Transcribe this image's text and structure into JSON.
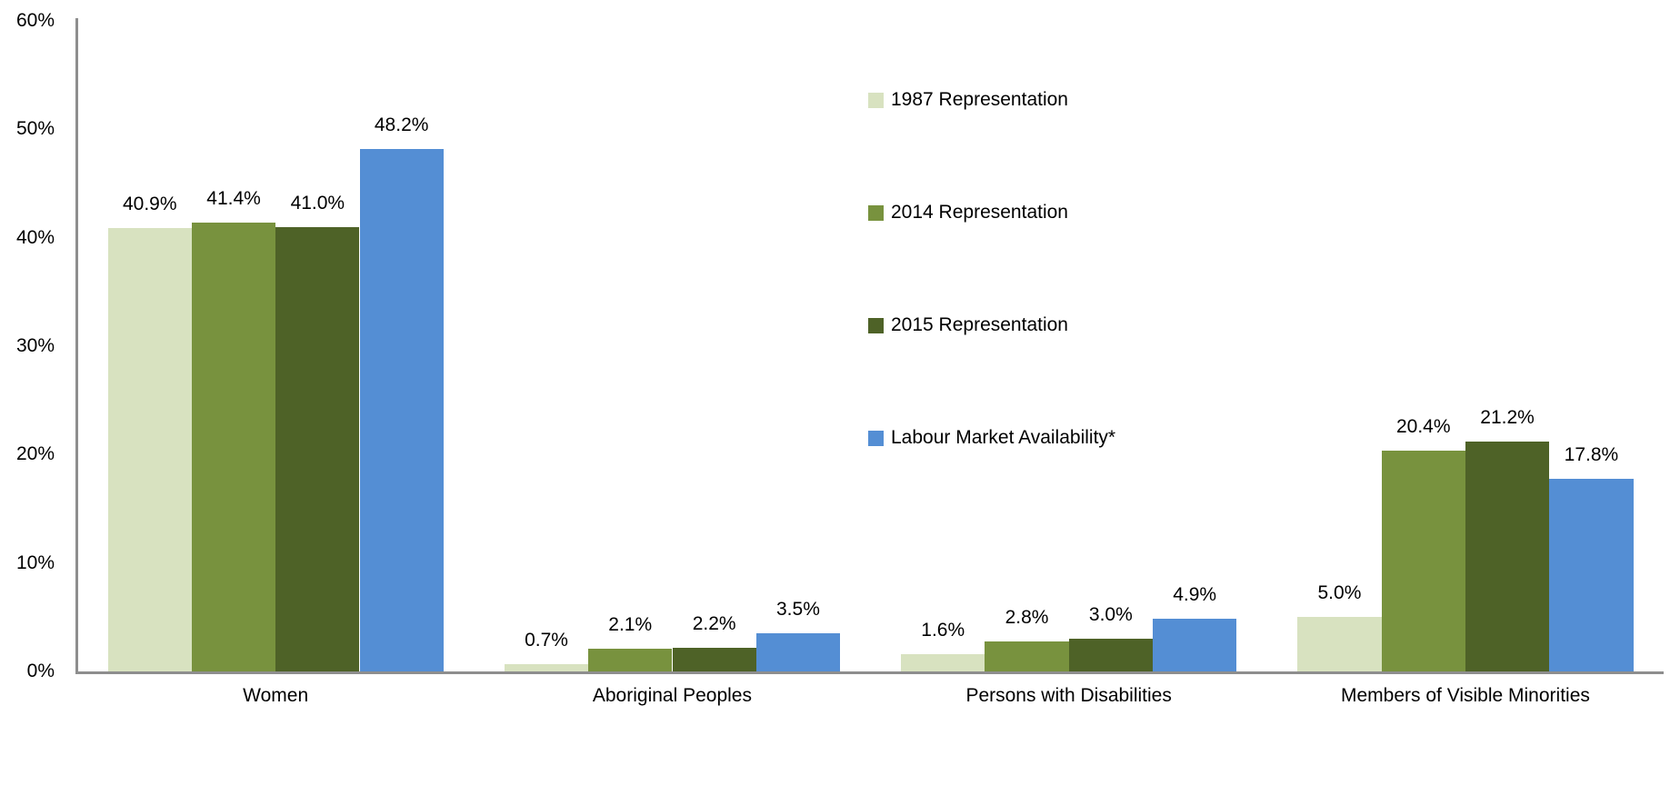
{
  "chart_data": {
    "type": "bar",
    "title": "",
    "xlabel": "",
    "ylabel": "",
    "categories": [
      "Women",
      "Aboriginal Peoples",
      "Persons with Disabilities",
      "Members of Visible Minorities"
    ],
    "series": [
      {
        "name": "1987 Representation",
        "color": "#d8e2c0",
        "values": [
          40.9,
          0.7,
          1.6,
          5.0
        ],
        "labels": [
          "40.9%",
          "0.7%",
          "1.6%",
          "5.0%"
        ]
      },
      {
        "name": "2014 Representation",
        "color": "#78923e",
        "values": [
          41.4,
          2.1,
          2.8,
          20.4
        ],
        "labels": [
          "41.4%",
          "2.1%",
          "2.8%",
          "20.4%"
        ]
      },
      {
        "name": "2015 Representation",
        "color": "#4e6227",
        "values": [
          41.0,
          2.2,
          3.0,
          21.2
        ],
        "labels": [
          "41.0%",
          "2.2%",
          "3.0%",
          "21.2%"
        ]
      },
      {
        "name": "Labour Market Availability*",
        "color": "#548ed4",
        "values": [
          48.2,
          3.5,
          4.9,
          17.8
        ],
        "labels": [
          "48.2%",
          "3.5%",
          "4.9%",
          "17.8%"
        ]
      }
    ],
    "y_axis": {
      "min": 0,
      "max": 60,
      "step": 10,
      "tick_labels": [
        "0%",
        "10%",
        "20%",
        "30%",
        "40%",
        "50%",
        "60%"
      ]
    },
    "legend": {
      "position": "inside-right",
      "entries": [
        "1987 Representation",
        "2014 Representation",
        "2015 Representation",
        "Labour Market Availability*"
      ]
    },
    "grid": false,
    "style": {
      "axis_color": "#8e8e8e",
      "text_color": "#000000",
      "background": "#ffffff"
    }
  }
}
